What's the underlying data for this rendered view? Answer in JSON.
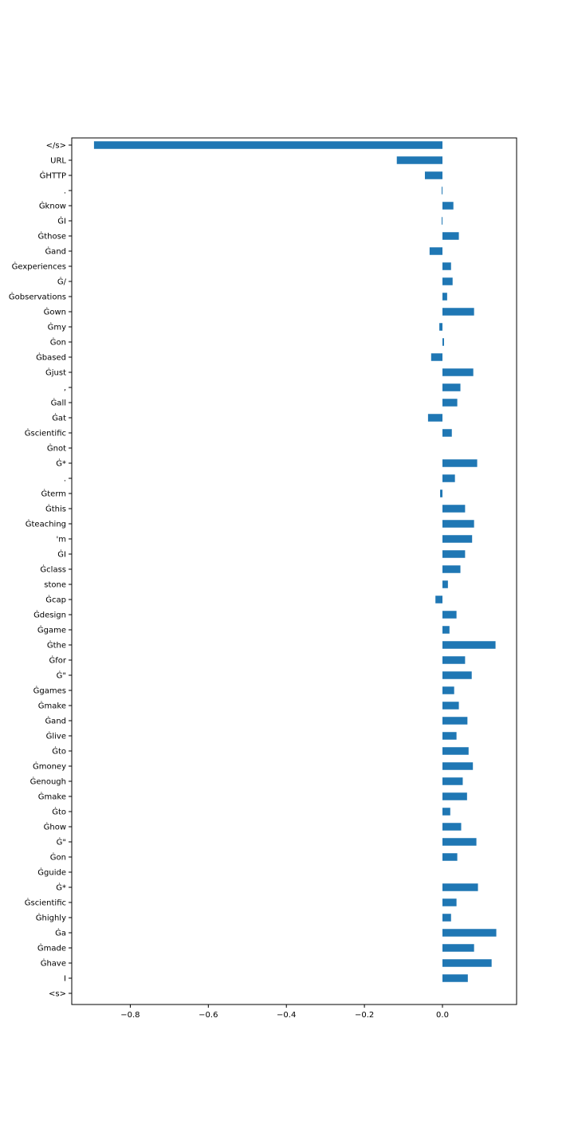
{
  "chart_data": {
    "type": "bar",
    "orientation": "horizontal",
    "bar_color": "#1f77b4",
    "grid": false,
    "xlim": [
      -0.95,
      0.19
    ],
    "xticks": [
      -0.8,
      -0.6,
      -0.4,
      -0.2,
      0.0
    ],
    "xtick_labels": [
      "−0.8",
      "−0.6",
      "−0.4",
      "−0.2",
      "0.0"
    ],
    "categories": [
      "</s>",
      "URL",
      "ĠHTTP",
      ".",
      "Ġknow",
      "ĠI",
      "Ġthose",
      "Ġand",
      "Ġexperiences",
      "Ġ/",
      "Ġobservations",
      "Ġown",
      "Ġmy",
      "Ġon",
      "Ġbased",
      "Ġjust",
      ",",
      "Ġall",
      "Ġat",
      "Ġscientific",
      "Ġnot",
      "Ġ*",
      ".",
      "Ġterm",
      "Ġthis",
      "Ġteaching",
      "'m",
      "ĠI",
      "Ġclass",
      "stone",
      "Ġcap",
      "Ġdesign",
      "Ġgame",
      "Ġthe",
      "Ġfor",
      "Ġ\"",
      "Ġgames",
      "Ġmake",
      "Ġand",
      "Ġlive",
      "Ġto",
      "Ġmoney",
      "Ġenough",
      "Ġmake",
      "Ġto",
      "Ġhow",
      "Ġ\"",
      "Ġon",
      "Ġguide",
      "Ġ*",
      "Ġscientific",
      "Ġhighly",
      "Ġa",
      "Ġmade",
      "Ġhave",
      "I",
      "<s>"
    ],
    "values": [
      -0.893,
      -0.117,
      -0.045,
      -0.002,
      0.028,
      -0.002,
      0.042,
      -0.033,
      0.022,
      0.026,
      0.012,
      0.081,
      -0.008,
      0.004,
      -0.029,
      0.079,
      0.046,
      0.038,
      -0.037,
      0.024,
      0.0,
      0.089,
      0.032,
      -0.006,
      0.058,
      0.081,
      0.076,
      0.058,
      0.046,
      0.014,
      -0.018,
      0.036,
      0.018,
      0.136,
      0.058,
      0.075,
      0.03,
      0.042,
      0.064,
      0.036,
      0.067,
      0.078,
      0.052,
      0.063,
      0.02,
      0.048,
      0.087,
      0.038,
      0.0,
      0.091,
      0.036,
      0.022,
      0.138,
      0.081,
      0.126,
      0.065,
      0.0
    ]
  }
}
